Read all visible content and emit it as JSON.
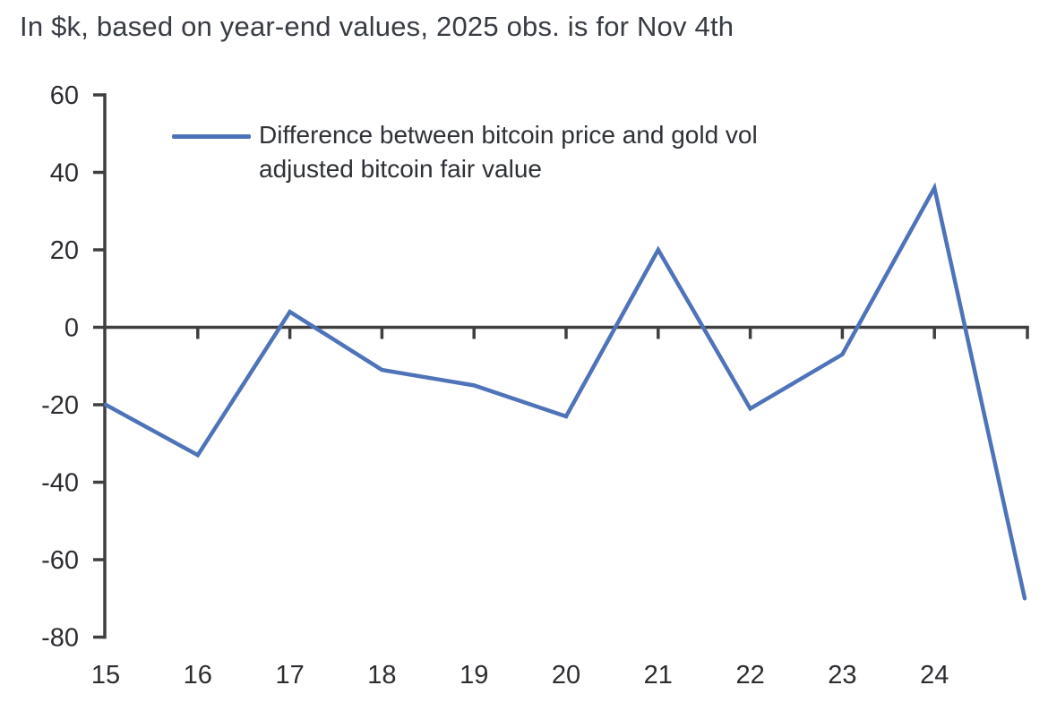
{
  "title": "In $k, based on year-end values, 2025 obs. is for Nov 4th",
  "legend": {
    "lines": [
      "Difference between bitcoin price and gold vol",
      "adjusted bitcoin fair value"
    ]
  },
  "colors": {
    "line": "#4e73b9",
    "axis": "#3f3f3f",
    "title_text": "#383c43",
    "label_text": "#2b2d31",
    "background": "#ffffff"
  },
  "chart_data": {
    "type": "line",
    "title": "In $k, based on year-end values, 2025 obs. is for Nov 4th",
    "xlabel": "",
    "ylabel": "",
    "x": [
      2015,
      2016,
      2017,
      2018,
      2019,
      2020,
      2021,
      2022,
      2023,
      2024,
      2025
    ],
    "x_tick_labels": [
      "15",
      "16",
      "17",
      "18",
      "19",
      "20",
      "21",
      "22",
      "23",
      "24"
    ],
    "series": [
      {
        "name": "Difference between bitcoin price and gold vol adjusted bitcoin fair value",
        "values": [
          -20,
          -33,
          4,
          -11,
          -15,
          -23,
          20,
          -21,
          -7,
          36,
          -70
        ]
      }
    ],
    "ylim": [
      -80,
      60
    ],
    "yticks": [
      60,
      40,
      20,
      0,
      -20,
      -40,
      -60,
      -80
    ],
    "grid": false,
    "zero_line": true,
    "legend_position": "top-left-inside",
    "line_color": "#4e73b9",
    "axis_color": "#3f3f3f"
  }
}
